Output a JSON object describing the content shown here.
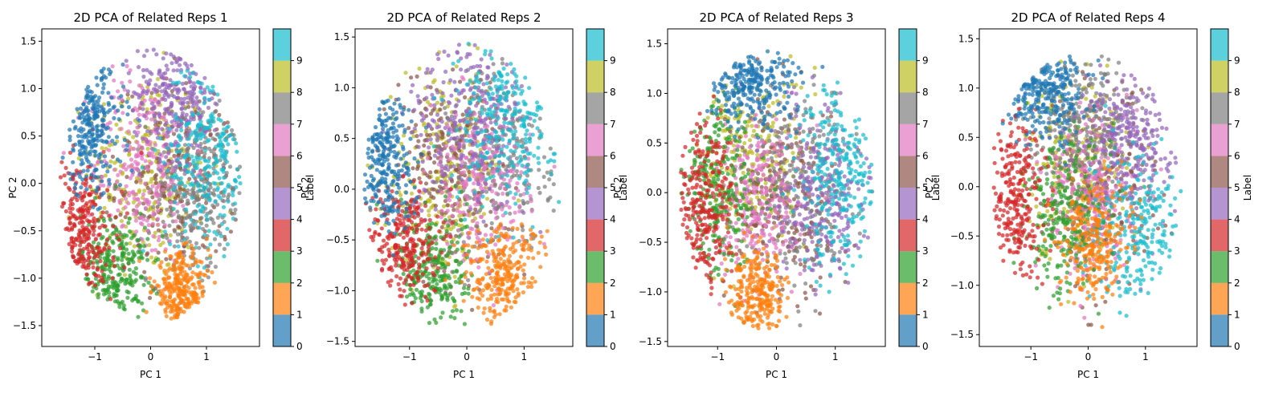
{
  "chart_data": [
    {
      "type": "scatter",
      "title": "2D PCA of Related Reps 1",
      "xlabel": "PC 1",
      "ylabel": "PC 2",
      "xlim": [
        -1.95,
        1.95
      ],
      "ylim": [
        -1.72,
        1.63
      ],
      "xticks": [
        -1,
        0,
        1
      ],
      "xtick_labels": [
        "−1",
        "0",
        "1"
      ],
      "yticks": [
        -1.5,
        -1.0,
        -0.5,
        0.0,
        0.5,
        1.0,
        1.5
      ],
      "ytick_labels": [
        "−1.5",
        "−1.0",
        "−0.5",
        "0.0",
        "0.5",
        "1.0",
        "1.5"
      ],
      "cloud": {
        "cx": 0.0,
        "cy": -0.03,
        "rx": 1.62,
        "ry": 1.45
      },
      "clusters": [
        {
          "label": 0,
          "cx": -1.05,
          "cy": 0.6,
          "sx": 0.28,
          "sy": 0.35
        },
        {
          "label": 1,
          "cx": 0.55,
          "cy": -1.15,
          "sx": 0.25,
          "sy": 0.2
        },
        {
          "label": 2,
          "cx": -0.65,
          "cy": -0.9,
          "sx": 0.3,
          "sy": 0.3
        },
        {
          "label": 3,
          "cx": -1.25,
          "cy": -0.55,
          "sx": 0.3,
          "sy": 0.4
        },
        {
          "label": 4,
          "cx": 0.5,
          "cy": 0.95,
          "sx": 0.4,
          "sy": 0.35
        },
        {
          "label": 5,
          "cx": 0.5,
          "cy": 0.05,
          "sx": 0.55,
          "sy": 0.5
        },
        {
          "label": 6,
          "cx": -0.15,
          "cy": 0.2,
          "sx": 0.45,
          "sy": 0.5
        },
        {
          "label": 7,
          "cx": 0.85,
          "cy": -0.15,
          "sx": 0.45,
          "sy": 0.45
        },
        {
          "label": 8,
          "cx": -0.1,
          "cy": 0.1,
          "sx": 0.55,
          "sy": 0.55
        },
        {
          "label": 9,
          "cx": 1.05,
          "cy": 0.3,
          "sx": 0.4,
          "sy": 0.55
        }
      ]
    },
    {
      "type": "scatter",
      "title": "2D PCA of Related Reps 2",
      "xlabel": "PC 1",
      "ylabel": "PC 2",
      "xlim": [
        -1.95,
        1.85
      ],
      "ylim": [
        -1.55,
        1.58
      ],
      "xticks": [
        -1,
        0,
        1
      ],
      "xtick_labels": [
        "−1",
        "0",
        "1"
      ],
      "yticks": [
        -1.5,
        -1.0,
        -0.5,
        0.0,
        0.5,
        1.0,
        1.5
      ],
      "ytick_labels": [
        "−1.5",
        "−1.0",
        "−0.5",
        "0.0",
        "0.5",
        "1.0",
        "1.5"
      ],
      "cloud": {
        "cx": -0.1,
        "cy": 0.02,
        "rx": 1.72,
        "ry": 1.42
      },
      "clusters": [
        {
          "label": 0,
          "cx": -1.45,
          "cy": 0.35,
          "sx": 0.25,
          "sy": 0.35
        },
        {
          "label": 1,
          "cx": 0.65,
          "cy": -0.85,
          "sx": 0.35,
          "sy": 0.25
        },
        {
          "label": 2,
          "cx": -0.6,
          "cy": -0.8,
          "sx": 0.3,
          "sy": 0.3
        },
        {
          "label": 3,
          "cx": -1.1,
          "cy": -0.55,
          "sx": 0.3,
          "sy": 0.3
        },
        {
          "label": 4,
          "cx": 0.0,
          "cy": 0.7,
          "sx": 0.55,
          "sy": 0.45
        },
        {
          "label": 5,
          "cx": -0.3,
          "cy": 0.2,
          "sx": 0.5,
          "sy": 0.5
        },
        {
          "label": 6,
          "cx": 0.2,
          "cy": 0.0,
          "sx": 0.45,
          "sy": 0.4
        },
        {
          "label": 7,
          "cx": 0.6,
          "cy": 0.3,
          "sx": 0.45,
          "sy": 0.45
        },
        {
          "label": 8,
          "cx": -0.4,
          "cy": 0.15,
          "sx": 0.5,
          "sy": 0.5
        },
        {
          "label": 9,
          "cx": 0.75,
          "cy": 0.75,
          "sx": 0.45,
          "sy": 0.45
        }
      ]
    },
    {
      "type": "scatter",
      "title": "2D PCA of Related Reps 3",
      "xlabel": "PC 1",
      "ylabel": "PC 2",
      "xlim": [
        -1.85,
        1.85
      ],
      "ylim": [
        -1.55,
        1.65
      ],
      "xticks": [
        -1,
        0,
        1
      ],
      "xtick_labels": [
        "−1",
        "0",
        "1"
      ],
      "yticks": [
        -1.5,
        -1.0,
        -0.5,
        0.0,
        0.5,
        1.0,
        1.5
      ],
      "ytick_labels": [
        "−1.5",
        "−1.0",
        "−0.5",
        "0.0",
        "0.5",
        "1.0",
        "1.5"
      ],
      "cloud": {
        "cx": 0.0,
        "cy": 0.02,
        "rx": 1.65,
        "ry": 1.42
      },
      "clusters": [
        {
          "label": 0,
          "cx": -0.45,
          "cy": 1.1,
          "sx": 0.4,
          "sy": 0.22
        },
        {
          "label": 1,
          "cx": -0.3,
          "cy": -1.05,
          "sx": 0.25,
          "sy": 0.22
        },
        {
          "label": 2,
          "cx": -0.95,
          "cy": 0.0,
          "sx": 0.3,
          "sy": 0.45
        },
        {
          "label": 3,
          "cx": -1.25,
          "cy": -0.2,
          "sx": 0.25,
          "sy": 0.5
        },
        {
          "label": 4,
          "cx": 0.8,
          "cy": 0.0,
          "sx": 0.4,
          "sy": 0.45
        },
        {
          "label": 5,
          "cx": 0.1,
          "cy": -0.1,
          "sx": 0.5,
          "sy": 0.5
        },
        {
          "label": 6,
          "cx": -0.3,
          "cy": -0.1,
          "sx": 0.35,
          "sy": 0.4
        },
        {
          "label": 7,
          "cx": 0.45,
          "cy": 0.1,
          "sx": 0.45,
          "sy": 0.5
        },
        {
          "label": 8,
          "cx": -0.4,
          "cy": 0.3,
          "sx": 0.45,
          "sy": 0.45
        },
        {
          "label": 9,
          "cx": 1.1,
          "cy": 0.25,
          "sx": 0.35,
          "sy": 0.55
        }
      ]
    },
    {
      "type": "scatter",
      "title": "2D PCA of Related Reps 4",
      "xlabel": "PC 1",
      "ylabel": "PC 2",
      "xlim": [
        -1.9,
        1.9
      ],
      "ylim": [
        -1.62,
        1.6
      ],
      "xticks": [
        -1,
        0,
        1
      ],
      "xtick_labels": [
        "−1",
        "0",
        "1"
      ],
      "yticks": [
        -1.5,
        -1.0,
        -0.5,
        0.0,
        0.5,
        1.0,
        1.5
      ],
      "ytick_labels": [
        "−1.5",
        "−1.0",
        "−0.5",
        "0.0",
        "0.5",
        "1.0",
        "1.5"
      ],
      "cloud": {
        "cx": -0.05,
        "cy": -0.05,
        "rx": 1.68,
        "ry": 1.4
      },
      "clusters": [
        {
          "label": 0,
          "cx": -0.8,
          "cy": 1.0,
          "sx": 0.35,
          "sy": 0.25
        },
        {
          "label": 1,
          "cx": 0.1,
          "cy": -0.55,
          "sx": 0.3,
          "sy": 0.3
        },
        {
          "label": 2,
          "cx": -0.4,
          "cy": -0.3,
          "sx": 0.35,
          "sy": 0.4
        },
        {
          "label": 3,
          "cx": -1.25,
          "cy": -0.1,
          "sx": 0.25,
          "sy": 0.4
        },
        {
          "label": 4,
          "cx": 0.75,
          "cy": 0.55,
          "sx": 0.4,
          "sy": 0.4
        },
        {
          "label": 5,
          "cx": 0.2,
          "cy": 0.0,
          "sx": 0.5,
          "sy": 0.5
        },
        {
          "label": 6,
          "cx": 0.1,
          "cy": -0.1,
          "sx": 0.4,
          "sy": 0.4
        },
        {
          "label": 7,
          "cx": 0.0,
          "cy": 0.65,
          "sx": 0.45,
          "sy": 0.35
        },
        {
          "label": 8,
          "cx": -0.2,
          "cy": 0.2,
          "sx": 0.45,
          "sy": 0.45
        },
        {
          "label": 9,
          "cx": 0.9,
          "cy": -0.5,
          "sx": 0.45,
          "sy": 0.45
        }
      ]
    }
  ],
  "colorbar": {
    "label": "Label",
    "ticks": [
      "0",
      "1",
      "2",
      "3",
      "4",
      "5",
      "6",
      "7",
      "8",
      "9"
    ],
    "colors": [
      "#1f77b4",
      "#ff7f0e",
      "#2ca02c",
      "#d62728",
      "#9467bd",
      "#8c564b",
      "#e377c2",
      "#7f7f7f",
      "#bcbd22",
      "#17becf"
    ]
  }
}
